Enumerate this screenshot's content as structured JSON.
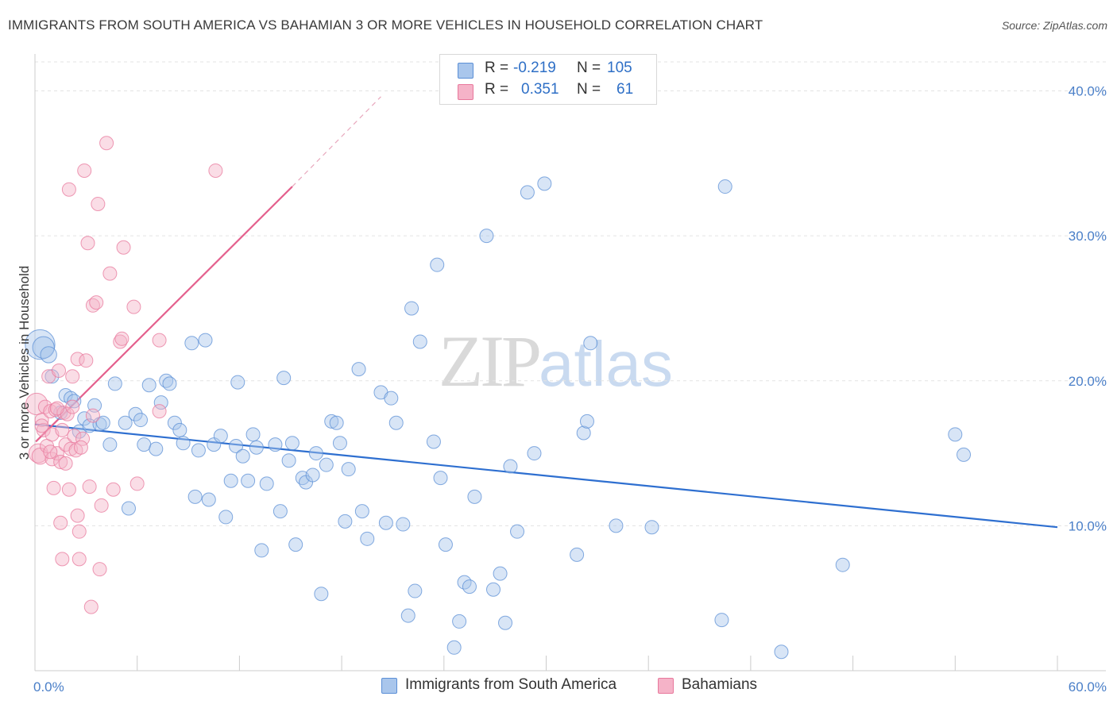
{
  "title": "IMMIGRANTS FROM SOUTH AMERICA VS BAHAMIAN 3 OR MORE VEHICLES IN HOUSEHOLD CORRELATION CHART",
  "source": "Source: ZipAtlas.com",
  "watermark": {
    "part1": "ZIP",
    "part2": "atlas"
  },
  "legend": {
    "rows": [
      {
        "r_label": "R =",
        "r_value": "-0.219",
        "n_label": "N =",
        "n_value": "105",
        "color": "#a9c6ec"
      },
      {
        "r_label": "R =",
        "r_value": "0.351",
        "n_label": "N =",
        "n_value": "61",
        "color": "#f5b3c8"
      }
    ]
  },
  "bottom_legend": {
    "items": [
      {
        "label": "Immigrants from South America",
        "color": "#a9c6ec"
      },
      {
        "label": "Bahamians",
        "color": "#f5b3c8"
      }
    ]
  },
  "chart_data": {
    "type": "scatter",
    "title": "IMMIGRANTS FROM SOUTH AMERICA VS BAHAMIAN 3 OR MORE VEHICLES IN HOUSEHOLD CORRELATION CHART",
    "xlabel": "",
    "ylabel": "3 or more Vehicles in Household",
    "xlim": [
      0,
      60
    ],
    "ylim": [
      0,
      42
    ],
    "x_tick_labels": [
      "0.0%",
      "60.0%"
    ],
    "y_tick_labels": [
      "10.0%",
      "20.0%",
      "30.0%",
      "40.0%"
    ],
    "y_ticks": [
      10,
      20,
      30,
      40
    ],
    "grid": true,
    "legend_position": "top-center",
    "series": [
      {
        "name": "Immigrants from South America",
        "color": "#5b8fd6",
        "fill": "#a9c6ec",
        "trend": {
          "x": [
            0,
            60
          ],
          "y": [
            17.0,
            9.9
          ]
        },
        "points": [
          [
            0.3,
            22.5,
            2.2
          ],
          [
            0.5,
            22.3,
            1.6
          ],
          [
            0.8,
            21.8,
            1.2
          ],
          [
            1.0,
            20.3,
            1.0
          ],
          [
            1.5,
            17.8,
            1.0
          ],
          [
            1.8,
            19.0,
            1.0
          ],
          [
            2.1,
            18.8,
            1.0
          ],
          [
            2.3,
            18.6,
            1.0
          ],
          [
            2.6,
            16.5,
            1.0
          ],
          [
            2.9,
            17.4,
            1.0
          ],
          [
            3.2,
            16.9,
            1.0
          ],
          [
            3.5,
            18.3,
            1.0
          ],
          [
            3.8,
            17.0,
            1.0
          ],
          [
            4.0,
            17.1,
            1.0
          ],
          [
            4.4,
            15.6,
            1.0
          ],
          [
            4.7,
            19.8,
            1.0
          ],
          [
            5.3,
            17.1,
            1.0
          ],
          [
            5.5,
            11.2,
            1.0
          ],
          [
            5.9,
            17.7,
            1.0
          ],
          [
            6.2,
            17.3,
            1.0
          ],
          [
            6.4,
            15.6,
            1.0
          ],
          [
            6.7,
            19.7,
            1.0
          ],
          [
            7.1,
            15.3,
            1.0
          ],
          [
            7.4,
            18.5,
            1.0
          ],
          [
            7.7,
            20.0,
            1.0
          ],
          [
            7.9,
            19.8,
            1.0
          ],
          [
            8.2,
            17.1,
            1.0
          ],
          [
            8.5,
            16.6,
            1.0
          ],
          [
            8.7,
            15.7,
            1.0
          ],
          [
            9.2,
            22.6,
            1.0
          ],
          [
            9.4,
            12.0,
            1.0
          ],
          [
            9.6,
            15.2,
            1.0
          ],
          [
            10.0,
            22.8,
            1.0
          ],
          [
            10.2,
            11.8,
            1.0
          ],
          [
            10.5,
            15.6,
            1.0
          ],
          [
            10.9,
            16.2,
            1.0
          ],
          [
            11.2,
            10.6,
            1.0
          ],
          [
            11.5,
            13.1,
            1.0
          ],
          [
            11.8,
            15.5,
            1.0
          ],
          [
            11.9,
            19.9,
            1.0
          ],
          [
            12.2,
            14.8,
            1.0
          ],
          [
            12.5,
            13.1,
            1.0
          ],
          [
            12.8,
            16.3,
            1.0
          ],
          [
            13.0,
            15.4,
            1.0
          ],
          [
            13.3,
            8.3,
            1.0
          ],
          [
            13.6,
            12.9,
            1.0
          ],
          [
            14.1,
            15.6,
            1.0
          ],
          [
            14.4,
            11.0,
            1.0
          ],
          [
            14.6,
            20.2,
            1.0
          ],
          [
            14.9,
            14.5,
            1.0
          ],
          [
            15.1,
            15.7,
            1.0
          ],
          [
            15.3,
            8.7,
            1.0
          ],
          [
            15.7,
            13.3,
            1.0
          ],
          [
            15.9,
            13.0,
            1.0
          ],
          [
            16.3,
            13.5,
            1.0
          ],
          [
            16.5,
            15.0,
            1.0
          ],
          [
            16.8,
            5.3,
            1.0
          ],
          [
            17.1,
            14.2,
            1.0
          ],
          [
            17.4,
            17.2,
            1.0
          ],
          [
            17.7,
            17.1,
            1.0
          ],
          [
            17.9,
            15.7,
            1.0
          ],
          [
            18.2,
            10.3,
            1.0
          ],
          [
            18.4,
            13.9,
            1.0
          ],
          [
            19.0,
            20.8,
            1.0
          ],
          [
            19.2,
            11.0,
            1.0
          ],
          [
            19.5,
            9.1,
            1.0
          ],
          [
            20.3,
            19.2,
            1.0
          ],
          [
            20.6,
            10.2,
            1.0
          ],
          [
            20.9,
            18.8,
            1.0
          ],
          [
            21.2,
            17.1,
            1.0
          ],
          [
            21.6,
            10.1,
            1.0
          ],
          [
            21.9,
            3.8,
            1.0
          ],
          [
            22.1,
            25.0,
            1.0
          ],
          [
            22.3,
            5.5,
            1.0
          ],
          [
            22.6,
            22.7,
            1.0
          ],
          [
            23.4,
            15.8,
            1.0
          ],
          [
            23.6,
            28.0,
            1.0
          ],
          [
            23.8,
            13.3,
            1.0
          ],
          [
            24.1,
            8.7,
            1.0
          ],
          [
            24.6,
            1.6,
            1.0
          ],
          [
            24.9,
            3.4,
            1.0
          ],
          [
            25.2,
            6.1,
            1.0
          ],
          [
            25.5,
            5.8,
            1.0
          ],
          [
            25.8,
            12.0,
            1.0
          ],
          [
            26.5,
            30.0,
            1.0
          ],
          [
            26.9,
            5.6,
            1.0
          ],
          [
            27.3,
            6.7,
            1.0
          ],
          [
            27.6,
            3.3,
            1.0
          ],
          [
            27.9,
            14.1,
            1.0
          ],
          [
            28.3,
            9.6,
            1.0
          ],
          [
            28.9,
            33.0,
            1.0
          ],
          [
            29.3,
            15.0,
            1.0
          ],
          [
            29.9,
            33.6,
            1.0
          ],
          [
            31.8,
            8.0,
            1.0
          ],
          [
            32.2,
            16.4,
            1.0
          ],
          [
            32.4,
            17.2,
            1.0
          ],
          [
            32.6,
            22.6,
            1.0
          ],
          [
            34.1,
            10.0,
            1.0
          ],
          [
            36.2,
            9.9,
            1.0
          ],
          [
            40.5,
            33.4,
            1.0
          ],
          [
            40.3,
            3.5,
            1.0
          ],
          [
            43.8,
            1.3,
            1.0
          ],
          [
            47.4,
            7.3,
            1.0
          ],
          [
            54.0,
            16.3,
            1.0
          ],
          [
            54.5,
            14.9,
            1.0
          ]
        ]
      },
      {
        "name": "Bahamians",
        "color": "#e8789c",
        "fill": "#f5b3c8",
        "trend": {
          "x": [
            0.05,
            15.1
          ],
          "y": [
            15.8,
            33.4
          ]
        },
        "trend_extension": {
          "x": [
            15.1,
            20.3
          ],
          "y": [
            33.4,
            39.6
          ]
        },
        "points": [
          [
            0.1,
            18.4,
            1.6
          ],
          [
            0.2,
            15.0,
            1.4
          ],
          [
            0.3,
            14.8,
            1.2
          ],
          [
            0.4,
            17.3,
            1.0
          ],
          [
            0.5,
            16.6,
            1.0
          ],
          [
            0.6,
            18.2,
            1.0
          ],
          [
            0.7,
            15.5,
            1.0
          ],
          [
            0.8,
            20.3,
            1.0
          ],
          [
            0.9,
            17.9,
            1.0
          ],
          [
            1.0,
            16.3,
            1.0
          ],
          [
            1.0,
            14.6,
            1.0
          ],
          [
            1.1,
            12.6,
            1.0
          ],
          [
            1.2,
            18.0,
            1.0
          ],
          [
            1.3,
            15.0,
            1.0
          ],
          [
            1.4,
            20.7,
            1.0
          ],
          [
            1.5,
            14.4,
            1.0
          ],
          [
            1.5,
            10.2,
            1.0
          ],
          [
            1.6,
            16.6,
            1.0
          ],
          [
            1.6,
            7.7,
            1.0
          ],
          [
            1.7,
            17.8,
            1.0
          ],
          [
            1.8,
            14.3,
            1.0
          ],
          [
            1.8,
            15.6,
            1.0
          ],
          [
            1.9,
            17.7,
            1.0
          ],
          [
            2.0,
            33.2,
            1.0
          ],
          [
            2.0,
            12.5,
            1.0
          ],
          [
            2.1,
            15.3,
            1.0
          ],
          [
            2.2,
            18.2,
            1.0
          ],
          [
            2.2,
            20.3,
            1.0
          ],
          [
            2.3,
            16.2,
            1.0
          ],
          [
            2.4,
            15.2,
            1.0
          ],
          [
            2.5,
            21.5,
            1.0
          ],
          [
            2.5,
            10.7,
            1.0
          ],
          [
            2.6,
            9.6,
            1.0
          ],
          [
            2.6,
            7.7,
            1.0
          ],
          [
            2.8,
            16.0,
            1.0
          ],
          [
            2.9,
            34.5,
            1.0
          ],
          [
            3.0,
            21.4,
            1.0
          ],
          [
            3.1,
            29.5,
            1.0
          ],
          [
            3.2,
            12.7,
            1.0
          ],
          [
            3.3,
            4.4,
            1.0
          ],
          [
            3.4,
            17.6,
            1.0
          ],
          [
            3.4,
            25.2,
            1.0
          ],
          [
            3.6,
            25.4,
            1.0
          ],
          [
            3.7,
            32.2,
            1.0
          ],
          [
            3.8,
            7.0,
            1.0
          ],
          [
            3.9,
            11.4,
            1.0
          ],
          [
            4.2,
            36.4,
            1.0
          ],
          [
            4.4,
            27.4,
            1.0
          ],
          [
            4.6,
            12.5,
            1.0
          ],
          [
            5.0,
            22.7,
            1.0
          ],
          [
            5.1,
            22.9,
            1.0
          ],
          [
            5.2,
            29.2,
            1.0
          ],
          [
            5.8,
            25.1,
            1.0
          ],
          [
            6.0,
            12.9,
            1.0
          ],
          [
            7.3,
            22.8,
            1.0
          ],
          [
            7.3,
            17.9,
            1.0
          ],
          [
            10.6,
            34.5,
            1.0
          ],
          [
            0.4,
            16.9,
            1.0
          ],
          [
            0.9,
            15.1,
            1.0
          ],
          [
            1.3,
            18.1,
            1.0
          ],
          [
            2.7,
            15.4,
            1.0
          ]
        ]
      }
    ]
  }
}
